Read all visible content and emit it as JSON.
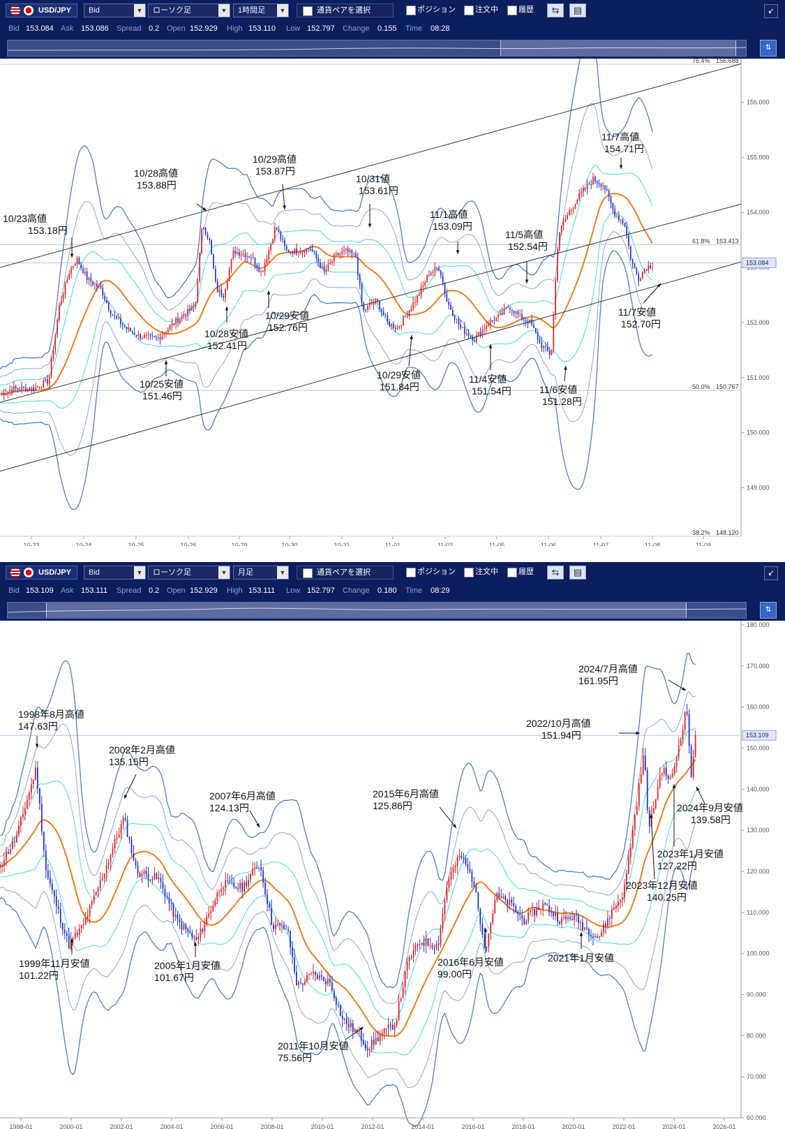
{
  "panels": [
    {
      "toolbar": {
        "pair": "USD/JPY",
        "price_type": "Bid",
        "chart_style": "ローソク足",
        "timeframe": "1時間足",
        "pair_select_label": "通貨ペアを選択",
        "position_label": "ポジション",
        "order_label": "注文中",
        "history_label": "履歴"
      },
      "info": {
        "bid_label": "Bid",
        "bid": "153.084",
        "ask_label": "Ask",
        "ask": "153.086",
        "spread_label": "Spread",
        "spread": "0.2",
        "open_label": "Open",
        "open": "152.929",
        "high_label": "High",
        "high": "153.110",
        "low_label": "Low",
        "low": "152.797",
        "change_label": "Change",
        "change": "0.155",
        "time_label": "Time",
        "time": "08:28"
      }
    },
    {
      "toolbar": {
        "pair": "USD/JPY",
        "price_type": "Bid",
        "chart_style": "ローソク足",
        "timeframe": "月足",
        "pair_select_label": "通貨ペアを選択",
        "position_label": "ポジション",
        "order_label": "注文中",
        "history_label": "履歴"
      },
      "info": {
        "bid_label": "Bid",
        "bid": "153.109",
        "ask_label": "Ask",
        "ask": "153.111",
        "spread_label": "Spread",
        "spread": "0.2",
        "open_label": "Open",
        "open": "152.929",
        "high_label": "High",
        "high": "153.111",
        "low_label": "Low",
        "low": "152.797",
        "change_label": "Change",
        "change": "0.180",
        "time_label": "Time",
        "time": "08:29"
      }
    }
  ],
  "chart_data": [
    {
      "type": "candlestick",
      "timeframe": "1時間足",
      "ylim": [
        148.12,
        156.69
      ],
      "y_ticks": [
        "149.000",
        "150.000",
        "151.000",
        "152.000",
        "153.000",
        "154.000",
        "155.000",
        "156.000"
      ],
      "x_labels": [
        "10-23",
        "10-24",
        "10-25",
        "10-26",
        "10-29",
        "10-30",
        "10-31",
        "11-01",
        "11-02",
        "11-05",
        "11-06",
        "11-07",
        "11-08",
        "11-09"
      ],
      "current_price": "153.084",
      "fib_levels": [
        {
          "pct": "76.4%",
          "value": "156.688"
        },
        {
          "pct": "61.8%",
          "value": "153.413"
        },
        {
          "pct": "50.0%",
          "value": "150.767"
        },
        {
          "pct": "38.2%",
          "value": "148.120"
        }
      ],
      "close_path": [
        [
          0,
          150.7
        ],
        [
          20,
          150.8
        ],
        [
          50,
          150.8
        ],
        [
          70,
          150.95
        ],
        [
          85,
          152.3
        ],
        [
          100,
          152.95
        ],
        [
          110,
          153.15
        ],
        [
          125,
          152.8
        ],
        [
          145,
          152.6
        ],
        [
          160,
          152.15
        ],
        [
          180,
          151.9
        ],
        [
          200,
          151.75
        ],
        [
          225,
          151.7
        ],
        [
          250,
          152.0
        ],
        [
          280,
          152.3
        ],
        [
          290,
          153.8
        ],
        [
          300,
          153.5
        ],
        [
          310,
          152.6
        ],
        [
          320,
          152.5
        ],
        [
          335,
          153.3
        ],
        [
          360,
          153.2
        ],
        [
          375,
          152.9
        ],
        [
          385,
          153.3
        ],
        [
          395,
          153.75
        ],
        [
          410,
          153.3
        ],
        [
          425,
          153.3
        ],
        [
          445,
          153.35
        ],
        [
          465,
          152.9
        ],
        [
          480,
          153.2
        ],
        [
          495,
          153.3
        ],
        [
          510,
          153.2
        ],
        [
          520,
          152.2
        ],
        [
          540,
          152.4
        ],
        [
          555,
          152.0
        ],
        [
          570,
          151.9
        ],
        [
          585,
          152.2
        ],
        [
          600,
          152.5
        ],
        [
          615,
          152.9
        ],
        [
          630,
          153.0
        ],
        [
          640,
          152.4
        ],
        [
          660,
          151.9
        ],
        [
          680,
          151.7
        ],
        [
          700,
          152.0
        ],
        [
          715,
          152.1
        ],
        [
          730,
          152.3
        ],
        [
          745,
          152.1
        ],
        [
          760,
          152.0
        ],
        [
          775,
          151.6
        ],
        [
          790,
          151.4
        ],
        [
          800,
          153.6
        ],
        [
          815,
          154.0
        ],
        [
          830,
          154.3
        ],
        [
          850,
          154.6
        ],
        [
          865,
          154.5
        ],
        [
          880,
          154.0
        ],
        [
          895,
          153.8
        ],
        [
          905,
          153.1
        ],
        [
          915,
          152.8
        ],
        [
          925,
          153.0
        ],
        [
          935,
          153.05
        ]
      ],
      "annotations": [
        {
          "label": "10/23高値",
          "value": "153.18円"
        },
        {
          "label": "10/25安値",
          "value": "151.46円"
        },
        {
          "label": "10/28高値",
          "value": "153.88円"
        },
        {
          "label": "10/28安値",
          "value": "152.41円"
        },
        {
          "label": "10/29高値",
          "value": "153.87円"
        },
        {
          "label": "10/29安値",
          "value": "152.76円"
        },
        {
          "label": "10/31値",
          "value": "153.61円"
        },
        {
          "label": "10/29安値",
          "value": "151.84円"
        },
        {
          "label": "11/1高値",
          "value": "153.09円"
        },
        {
          "label": "11/4安値",
          "value": "151.54円"
        },
        {
          "label": "11/5高値",
          "value": "152.54円"
        },
        {
          "label": "11/6安値",
          "value": "151.28円"
        },
        {
          "label": "11/7高値",
          "value": "154.71円"
        },
        {
          "label": "11/7安値",
          "value": "152.70円"
        }
      ]
    },
    {
      "type": "candlestick",
      "timeframe": "月足",
      "ylim": [
        60,
        180
      ],
      "y_ticks": [
        "60.000",
        "70.000",
        "80.000",
        "90.000",
        "100.000",
        "110.000",
        "120.000",
        "130.000",
        "140.000",
        "150.000",
        "160.000",
        "170.000",
        "180.000"
      ],
      "x_labels": [
        "1998-01",
        "2000-01",
        "2002-01",
        "2004-01",
        "2006-01",
        "2008-01",
        "2010-01",
        "2012-01",
        "2014-01",
        "2016-01",
        "2018-01",
        "2020-01",
        "2022-01",
        "2024-01",
        "2026-01"
      ],
      "current_price": "153.109",
      "close_path": [
        [
          1997.0,
          120
        ],
        [
          1997.8,
          128
        ],
        [
          1998.6,
          145
        ],
        [
          1999.0,
          120
        ],
        [
          1999.9,
          102
        ],
        [
          2000.5,
          107
        ],
        [
          2001.2,
          118
        ],
        [
          2002.1,
          133
        ],
        [
          2002.6,
          120
        ],
        [
          2003.5,
          118
        ],
        [
          2004.2,
          108
        ],
        [
          2005.0,
          103
        ],
        [
          2005.5,
          110
        ],
        [
          2006.0,
          117
        ],
        [
          2006.8,
          116
        ],
        [
          2007.5,
          122
        ],
        [
          2008.0,
          107
        ],
        [
          2008.6,
          106
        ],
        [
          2009.0,
          92
        ],
        [
          2009.6,
          95
        ],
        [
          2010.3,
          93
        ],
        [
          2010.8,
          84
        ],
        [
          2011.5,
          80
        ],
        [
          2011.8,
          77
        ],
        [
          2012.3,
          80
        ],
        [
          2012.9,
          83
        ],
        [
          2013.4,
          98
        ],
        [
          2013.9,
          103
        ],
        [
          2014.6,
          102
        ],
        [
          2015.0,
          118
        ],
        [
          2015.5,
          124
        ],
        [
          2016.0,
          118
        ],
        [
          2016.5,
          101
        ],
        [
          2016.9,
          114
        ],
        [
          2017.5,
          112
        ],
        [
          2018.0,
          108
        ],
        [
          2018.8,
          112
        ],
        [
          2019.5,
          108
        ],
        [
          2020.0,
          109
        ],
        [
          2020.5,
          106
        ],
        [
          2021.0,
          104
        ],
        [
          2021.5,
          110
        ],
        [
          2022.0,
          115
        ],
        [
          2022.5,
          136
        ],
        [
          2022.8,
          149
        ],
        [
          2023.0,
          130
        ],
        [
          2023.5,
          145
        ],
        [
          2023.9,
          142
        ],
        [
          2024.5,
          160
        ],
        [
          2024.7,
          142
        ],
        [
          2024.85,
          153
        ]
      ],
      "annotations": [
        {
          "label": "1998年8月高値",
          "value": "147.63円"
        },
        {
          "label": "1999年11月安値",
          "value": "101.22円"
        },
        {
          "label": "2002年2月高値",
          "value": "135.15円"
        },
        {
          "label": "2005年1月安値",
          "value": "101.67円"
        },
        {
          "label": "2007年6月高値",
          "value": "124.13円"
        },
        {
          "label": "2011年10月安値",
          "value": "75.56円"
        },
        {
          "label": "2015年6月高値",
          "value": "125.86円"
        },
        {
          "label": "2016年6月安値",
          "value": "99.00円"
        },
        {
          "label": "2021年1月安値",
          "value": ""
        },
        {
          "label": "2022/10月高値",
          "value": "151.94円"
        },
        {
          "label": "2024/7月高値",
          "value": "161.95円"
        },
        {
          "label": "2024年9月安値",
          "value": "139.58円"
        },
        {
          "label": "2023年1月安値",
          "value": "127.22円"
        },
        {
          "label": "2023年12月安値",
          "value": "140.25円"
        }
      ]
    }
  ]
}
